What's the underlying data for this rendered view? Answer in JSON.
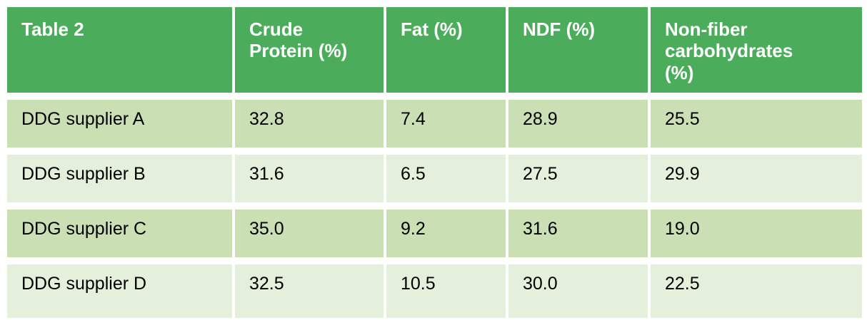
{
  "table": {
    "title_cell": "Table 2",
    "columns": [
      "Crude\nProtein (%)",
      "Fat (%)",
      "NDF (%)",
      "Non-fiber\ncarbohydrates\n(%)"
    ],
    "rows": [
      {
        "label": "DDG supplier A",
        "values": [
          "32.8",
          "7.4",
          "28.9",
          "25.5"
        ]
      },
      {
        "label": "DDG supplier B",
        "values": [
          "31.6",
          "6.5",
          "27.5",
          "29.9"
        ]
      },
      {
        "label": "DDG supplier C",
        "values": [
          "35.0",
          "9.2",
          "31.6",
          "19.0"
        ]
      },
      {
        "label": "DDG supplier D",
        "values": [
          "32.5",
          "10.5",
          "30.0",
          "22.5"
        ]
      }
    ]
  },
  "chart_data": {
    "type": "table",
    "title": "Table 2",
    "categories": [
      "DDG supplier A",
      "DDG supplier B",
      "DDG supplier C",
      "DDG supplier D"
    ],
    "series": [
      {
        "name": "Crude Protein (%)",
        "values": [
          32.8,
          31.6,
          35.0,
          32.5
        ]
      },
      {
        "name": "Fat (%)",
        "values": [
          7.4,
          6.5,
          9.2,
          10.5
        ]
      },
      {
        "name": "NDF (%)",
        "values": [
          28.9,
          27.5,
          31.6,
          30.0
        ]
      },
      {
        "name": "Non-fiber carbohydrates (%)",
        "values": [
          25.5,
          29.9,
          19.0,
          22.5
        ]
      }
    ]
  },
  "colors": {
    "header_bg": "#4BAD5B",
    "band_dark": "#CBDFB4",
    "band_light": "#E5F0DC",
    "header_text": "#FFFFFF",
    "body_text": "#000000",
    "page_bg": "#FFFFFF"
  }
}
